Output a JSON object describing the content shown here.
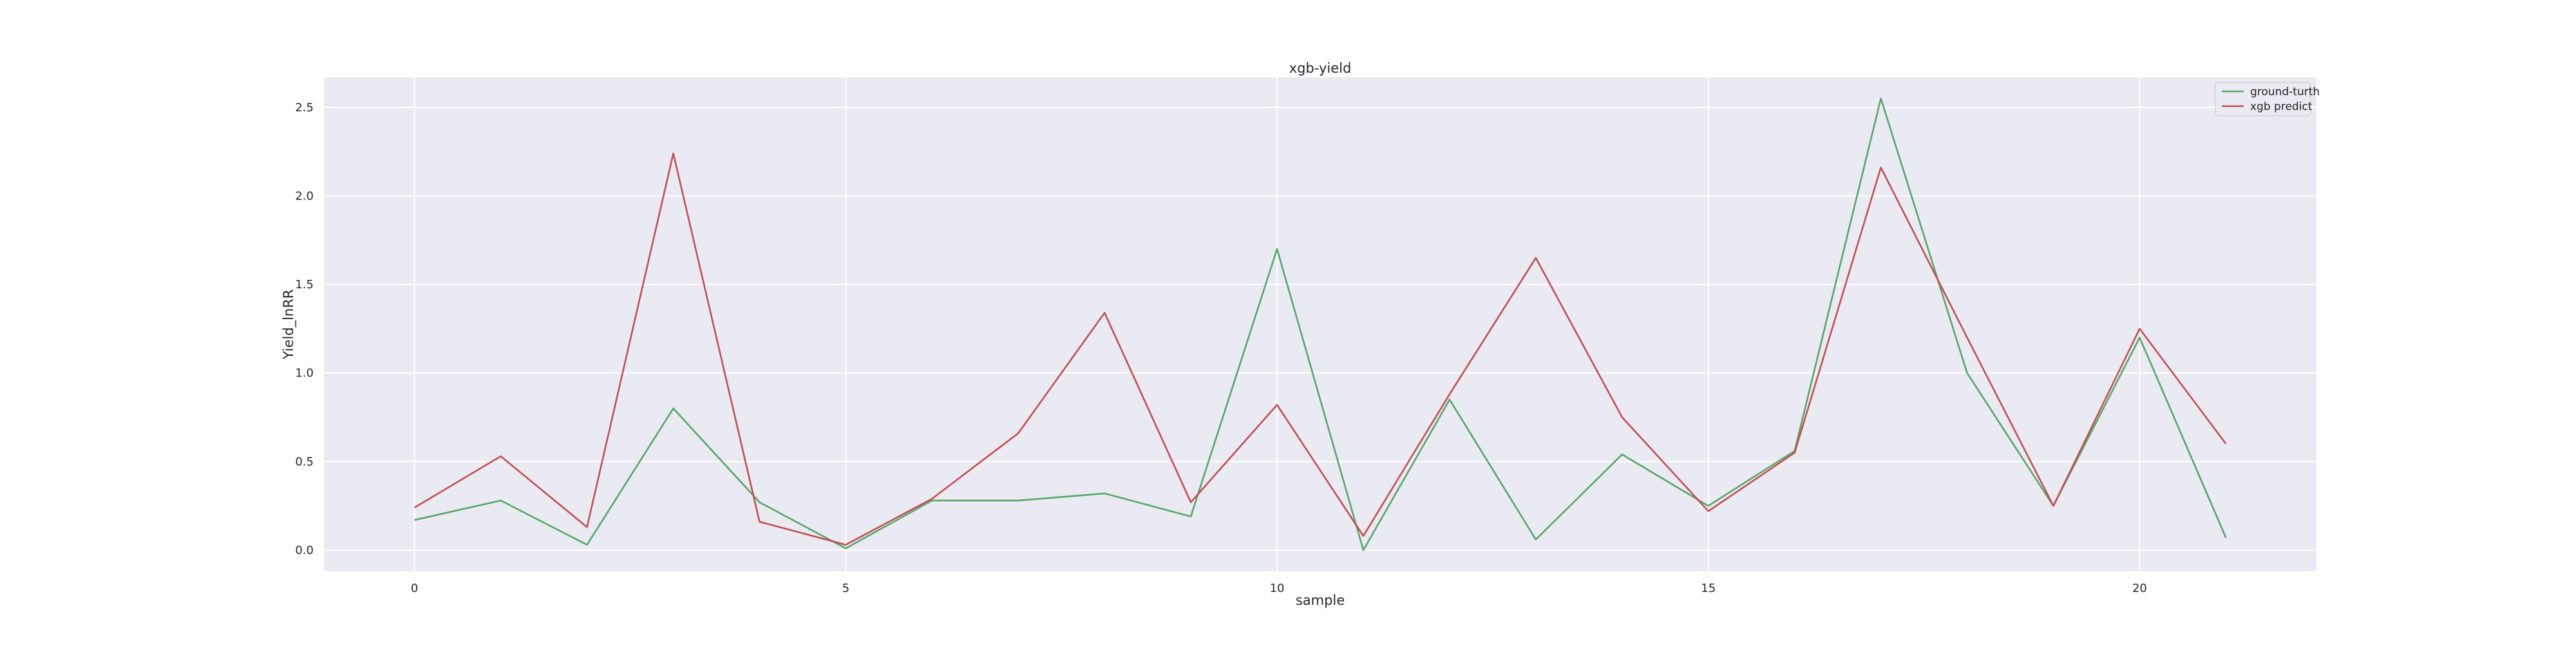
{
  "chart_data": {
    "type": "line",
    "title": "xgb-yield",
    "xlabel": "sample",
    "ylabel": "Yield_lnRR",
    "x": [
      0,
      1,
      2,
      3,
      4,
      5,
      6,
      7,
      8,
      9,
      10,
      11,
      12,
      13,
      14,
      15,
      16,
      17,
      18,
      19,
      20,
      21
    ],
    "xlim": [
      -1.05,
      22.05
    ],
    "ylim": [
      -0.12,
      2.67
    ],
    "xticks": [
      0,
      5,
      10,
      15,
      20
    ],
    "yticks": [
      0.0,
      0.5,
      1.0,
      1.5,
      2.0,
      2.5
    ],
    "xtick_labels": [
      "0",
      "5",
      "10",
      "15",
      "20"
    ],
    "ytick_labels": [
      "0.0",
      "0.5",
      "1.0",
      "1.5",
      "2.0",
      "2.5"
    ],
    "grid": true,
    "legend_position": "top-right",
    "background_color": "#eaeaf2",
    "grid_color": "#ffffff",
    "series": [
      {
        "name": "ground-turth",
        "color": "#55a868",
        "values": [
          0.17,
          0.28,
          0.03,
          0.8,
          0.27,
          0.01,
          0.28,
          0.28,
          0.32,
          0.19,
          1.7,
          0.0,
          0.85,
          0.06,
          0.54,
          0.25,
          0.56,
          2.55,
          1.0,
          0.25,
          1.2,
          0.07
        ]
      },
      {
        "name": "xgb predict",
        "color": "#c44e52",
        "values": [
          0.24,
          0.53,
          0.13,
          2.24,
          0.16,
          0.03,
          0.29,
          0.66,
          1.34,
          0.27,
          0.82,
          0.08,
          0.88,
          1.65,
          0.75,
          0.22,
          0.55,
          2.16,
          1.2,
          0.25,
          1.25,
          0.6
        ]
      }
    ]
  }
}
